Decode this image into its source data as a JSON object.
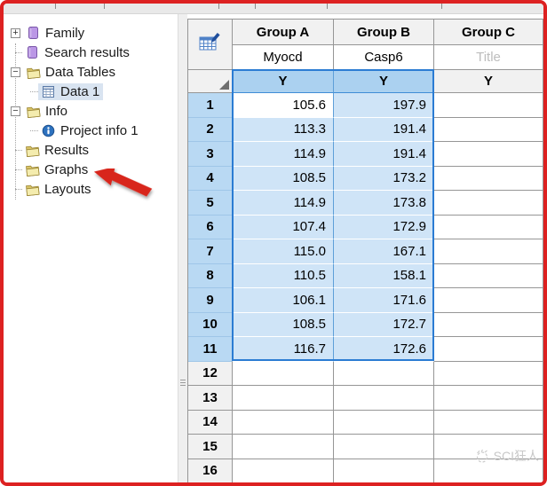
{
  "sidebar": {
    "items": [
      {
        "label": "Family",
        "icon": "book-icon",
        "level": 0,
        "expander": "plus",
        "selected": false,
        "annotated": false
      },
      {
        "label": "Search results",
        "icon": "book-icon",
        "level": 0,
        "expander": null,
        "selected": false,
        "annotated": false
      },
      {
        "label": "Data Tables",
        "icon": "folder-icon",
        "level": 0,
        "expander": "minus",
        "selected": false,
        "annotated": false
      },
      {
        "label": "Data 1",
        "icon": "data-table-icon",
        "level": 1,
        "expander": null,
        "selected": true,
        "annotated": false
      },
      {
        "label": "Info",
        "icon": "folder-icon",
        "level": 0,
        "expander": "minus",
        "selected": false,
        "annotated": false
      },
      {
        "label": "Project info 1",
        "icon": "info-icon",
        "level": 1,
        "expander": null,
        "selected": false,
        "annotated": false
      },
      {
        "label": "Results",
        "icon": "folder-icon",
        "level": 0,
        "expander": null,
        "selected": false,
        "annotated": false
      },
      {
        "label": "Graphs",
        "icon": "folder-icon",
        "level": 0,
        "expander": null,
        "selected": false,
        "annotated": true
      },
      {
        "label": "Layouts",
        "icon": "folder-icon",
        "level": 0,
        "expander": null,
        "selected": false,
        "annotated": false
      }
    ]
  },
  "table": {
    "columns": [
      {
        "group": "Group A",
        "subtitle": "Myocd",
        "y_label": "Y",
        "selected": true,
        "placeholder": false
      },
      {
        "group": "Group B",
        "subtitle": "Casp6",
        "y_label": "Y",
        "selected": true,
        "placeholder": false
      },
      {
        "group": "Group C",
        "subtitle": "Title",
        "y_label": "Y",
        "selected": false,
        "placeholder": true
      }
    ],
    "rows": [
      {
        "n": "1",
        "a": "105.6",
        "b": "197.9",
        "c": ""
      },
      {
        "n": "2",
        "a": "113.3",
        "b": "191.4",
        "c": ""
      },
      {
        "n": "3",
        "a": "114.9",
        "b": "191.4",
        "c": ""
      },
      {
        "n": "4",
        "a": "108.5",
        "b": "173.2",
        "c": ""
      },
      {
        "n": "5",
        "a": "114.9",
        "b": "173.8",
        "c": ""
      },
      {
        "n": "6",
        "a": "107.4",
        "b": "172.9",
        "c": ""
      },
      {
        "n": "7",
        "a": "115.0",
        "b": "167.1",
        "c": ""
      },
      {
        "n": "8",
        "a": "110.5",
        "b": "158.1",
        "c": ""
      },
      {
        "n": "9",
        "a": "106.1",
        "b": "171.6",
        "c": ""
      },
      {
        "n": "10",
        "a": "108.5",
        "b": "172.7",
        "c": ""
      },
      {
        "n": "11",
        "a": "116.7",
        "b": "172.6",
        "c": ""
      },
      {
        "n": "12",
        "a": "",
        "b": "",
        "c": ""
      },
      {
        "n": "13",
        "a": "",
        "b": "",
        "c": ""
      },
      {
        "n": "14",
        "a": "",
        "b": "",
        "c": ""
      },
      {
        "n": "15",
        "a": "",
        "b": "",
        "c": ""
      },
      {
        "n": "16",
        "a": "",
        "b": "",
        "c": ""
      }
    ],
    "selection": {
      "columns": [
        "Group A",
        "Group B"
      ],
      "first_row": 1,
      "last_row": 11,
      "active_cell": {
        "row": 1,
        "column": "Group A"
      }
    }
  },
  "watermark": {
    "text": "SCI狂人"
  },
  "annotation": {
    "points_to": "Graphs",
    "arrow_color": "#d8281e"
  },
  "colors": {
    "frame_border": "#dd2121",
    "selection_fill": "#cfe4f7",
    "selection_border": "#2b7cd3",
    "selected_row_header": "#b9d9f3",
    "selected_y_header": "#abd1f0",
    "header_bg": "#f1f1f1",
    "placeholder_text": "#bdbdbd"
  }
}
